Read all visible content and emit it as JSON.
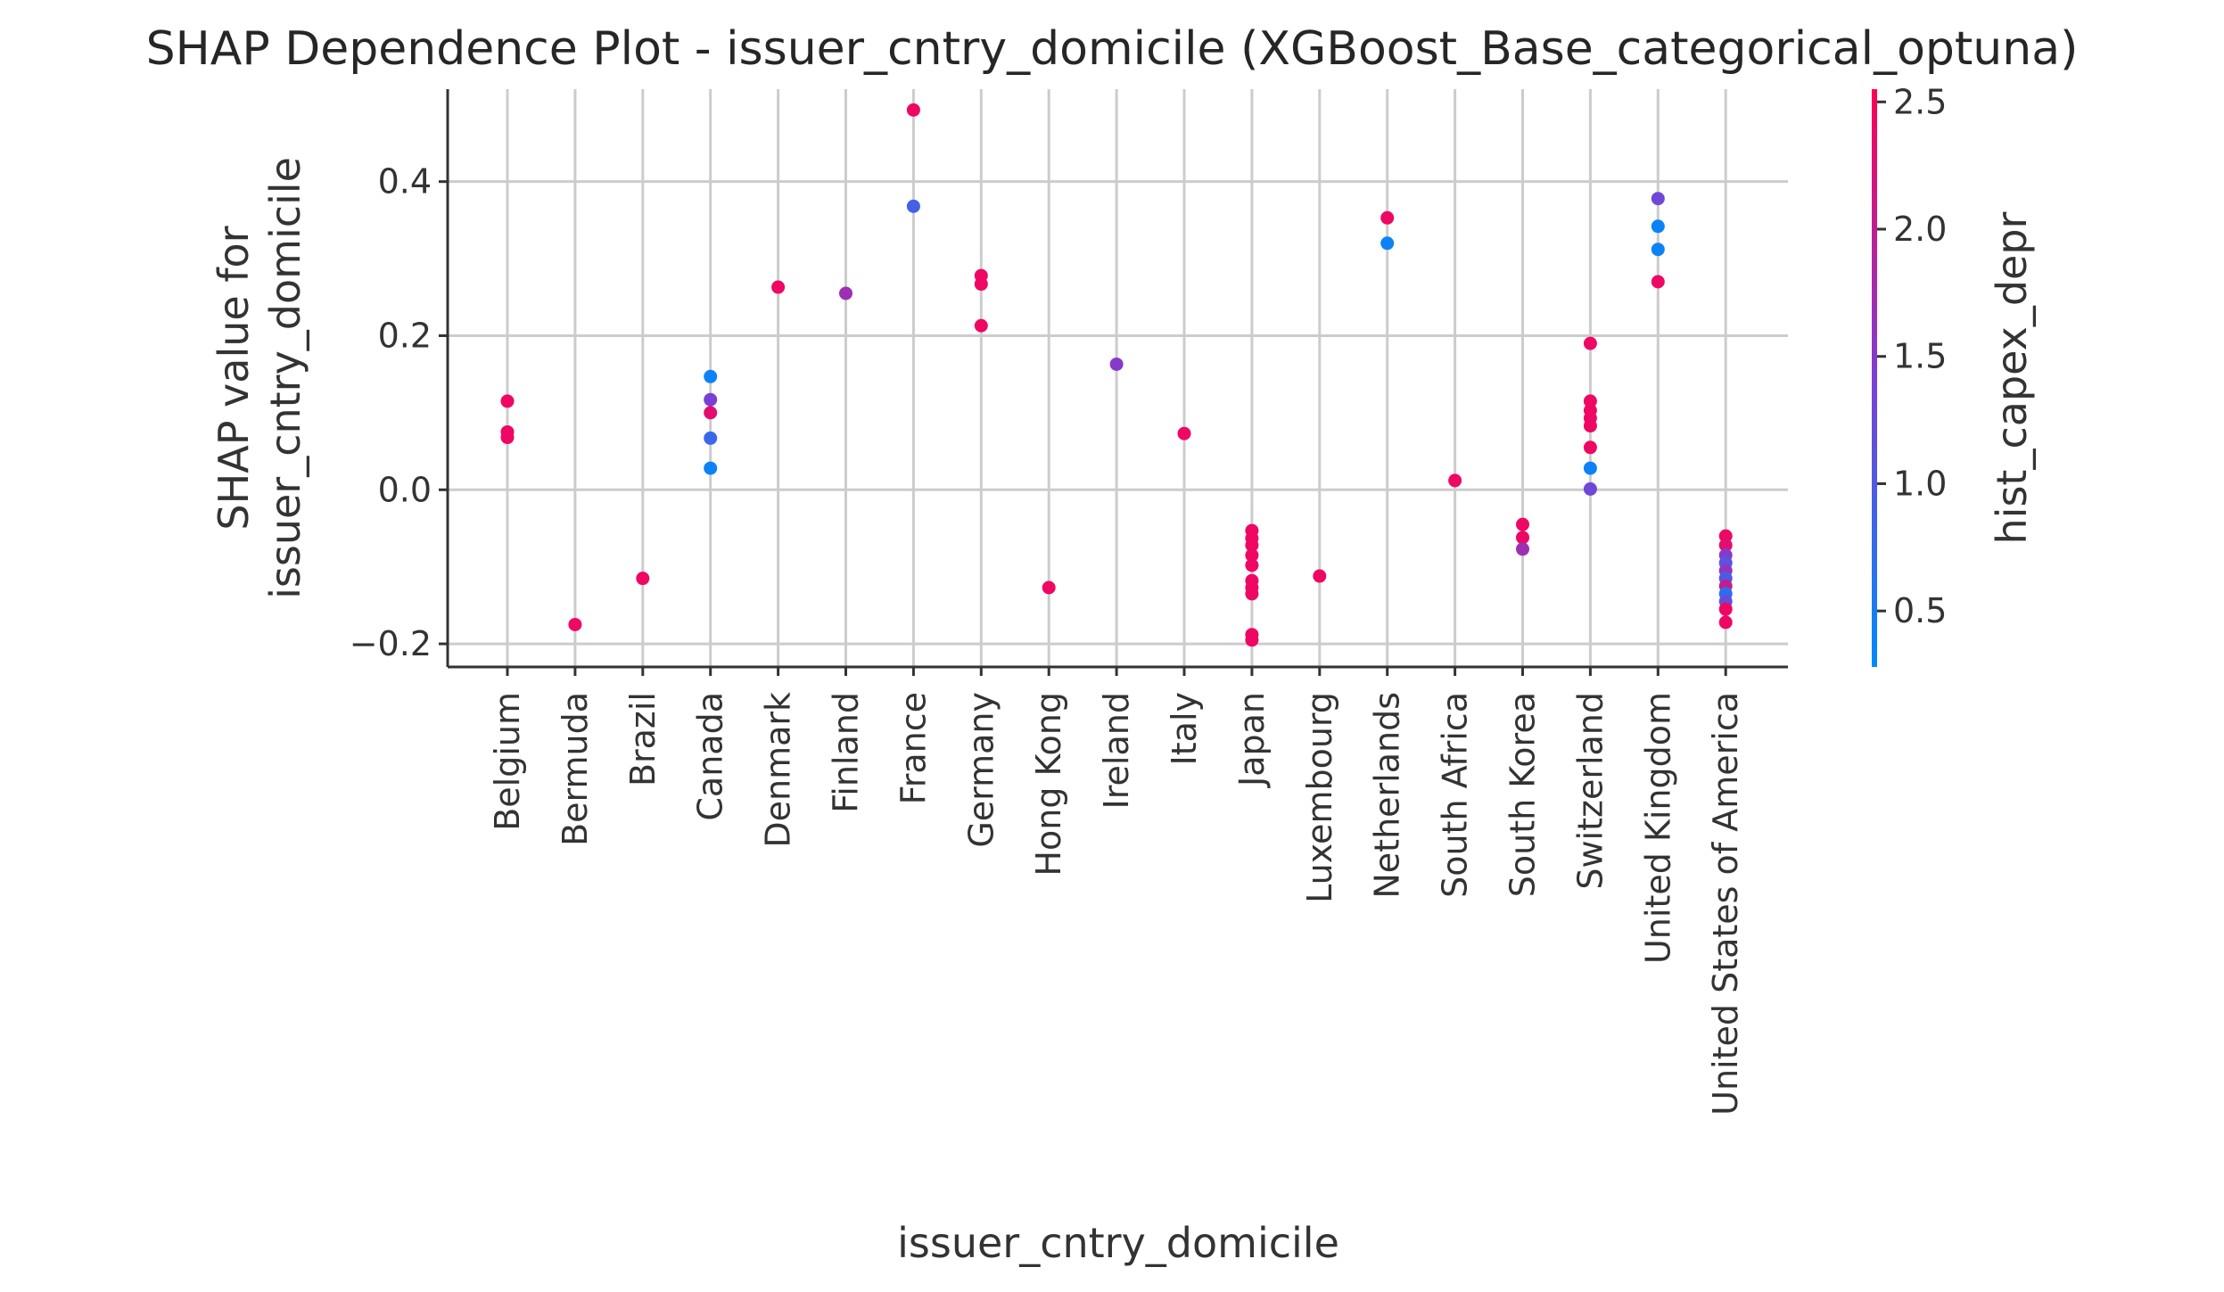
{
  "chart_data": {
    "type": "scatter",
    "title": "SHAP Dependence Plot - issuer_cntry_domicile (XGBoost_Base_categorical_optuna)",
    "xlabel": "issuer_cntry_domicile",
    "ylabel_lines": [
      "SHAP value for",
      "issuer_cntry_domicile"
    ],
    "ylim": [
      -0.23,
      0.52
    ],
    "yticks": [
      -0.2,
      0.0,
      0.2,
      0.4
    ],
    "ytick_labels": [
      "−0.2",
      "0.0",
      "0.2",
      "0.4"
    ],
    "grid": true,
    "categories": [
      "Belgium",
      "Bermuda",
      "Brazil",
      "Canada",
      "Denmark",
      "Finland",
      "France",
      "Germany",
      "Hong Kong",
      "Ireland",
      "Italy",
      "Japan",
      "Luxembourg",
      "Netherlands",
      "South Africa",
      "South Korea",
      "Switzerland",
      "United Kingdom",
      "United States of America"
    ],
    "colorbar": {
      "label": "hist_capex_depr",
      "range": [
        0.28,
        2.55
      ],
      "ticks": [
        0.5,
        1.0,
        1.5,
        2.0,
        2.5
      ],
      "tick_labels": [
        "0.5",
        "1.0",
        "1.5",
        "2.0",
        "2.5"
      ],
      "low_color": "#008afb",
      "mid_color": "#7c3fd5",
      "high_color": "#ff0052"
    },
    "points": [
      {
        "x": "Belgium",
        "y": 0.115,
        "c": 2.4
      },
      {
        "x": "Belgium",
        "y": 0.075,
        "c": 2.4
      },
      {
        "x": "Belgium",
        "y": 0.068,
        "c": 2.4
      },
      {
        "x": "Bermuda",
        "y": -0.175,
        "c": 2.4
      },
      {
        "x": "Brazil",
        "y": -0.115,
        "c": 2.4
      },
      {
        "x": "Canada",
        "y": 0.147,
        "c": 0.4
      },
      {
        "x": "Canada",
        "y": 0.117,
        "c": 1.4
      },
      {
        "x": "Canada",
        "y": 0.1,
        "c": 2.3
      },
      {
        "x": "Canada",
        "y": 0.067,
        "c": 0.8
      },
      {
        "x": "Canada",
        "y": 0.028,
        "c": 0.4
      },
      {
        "x": "Denmark",
        "y": 0.263,
        "c": 2.4
      },
      {
        "x": "Finland",
        "y": 0.255,
        "c": 1.7
      },
      {
        "x": "France",
        "y": 0.493,
        "c": 2.4
      },
      {
        "x": "France",
        "y": 0.368,
        "c": 0.9
      },
      {
        "x": "Germany",
        "y": 0.278,
        "c": 2.4
      },
      {
        "x": "Germany",
        "y": 0.267,
        "c": 2.4
      },
      {
        "x": "Germany",
        "y": 0.213,
        "c": 2.4
      },
      {
        "x": "Hong Kong",
        "y": -0.127,
        "c": 2.4
      },
      {
        "x": "Ireland",
        "y": 0.163,
        "c": 1.5
      },
      {
        "x": "Italy",
        "y": 0.073,
        "c": 2.4
      },
      {
        "x": "Japan",
        "y": -0.053,
        "c": 2.4
      },
      {
        "x": "Japan",
        "y": -0.063,
        "c": 2.4
      },
      {
        "x": "Japan",
        "y": -0.072,
        "c": 2.4
      },
      {
        "x": "Japan",
        "y": -0.085,
        "c": 2.4
      },
      {
        "x": "Japan",
        "y": -0.098,
        "c": 2.4
      },
      {
        "x": "Japan",
        "y": -0.118,
        "c": 2.4
      },
      {
        "x": "Japan",
        "y": -0.127,
        "c": 2.4
      },
      {
        "x": "Japan",
        "y": -0.135,
        "c": 2.4
      },
      {
        "x": "Japan",
        "y": -0.188,
        "c": 2.4
      },
      {
        "x": "Japan",
        "y": -0.195,
        "c": 2.4
      },
      {
        "x": "Luxembourg",
        "y": -0.112,
        "c": 2.4
      },
      {
        "x": "Netherlands",
        "y": 0.353,
        "c": 2.4
      },
      {
        "x": "Netherlands",
        "y": 0.32,
        "c": 0.4
      },
      {
        "x": "South Africa",
        "y": 0.012,
        "c": 2.4
      },
      {
        "x": "South Korea",
        "y": -0.045,
        "c": 2.4
      },
      {
        "x": "South Korea",
        "y": -0.062,
        "c": 2.4
      },
      {
        "x": "South Korea",
        "y": -0.077,
        "c": 1.7
      },
      {
        "x": "Switzerland",
        "y": 0.19,
        "c": 2.4
      },
      {
        "x": "Switzerland",
        "y": 0.115,
        "c": 2.4
      },
      {
        "x": "Switzerland",
        "y": 0.103,
        "c": 2.4
      },
      {
        "x": "Switzerland",
        "y": 0.093,
        "c": 2.4
      },
      {
        "x": "Switzerland",
        "y": 0.083,
        "c": 2.4
      },
      {
        "x": "Switzerland",
        "y": 0.055,
        "c": 2.4
      },
      {
        "x": "Switzerland",
        "y": 0.028,
        "c": 0.4
      },
      {
        "x": "Switzerland",
        "y": 0.001,
        "c": 1.3
      },
      {
        "x": "United Kingdom",
        "y": 0.378,
        "c": 1.3
      },
      {
        "x": "United Kingdom",
        "y": 0.342,
        "c": 0.4
      },
      {
        "x": "United Kingdom",
        "y": 0.312,
        "c": 0.4
      },
      {
        "x": "United Kingdom",
        "y": 0.27,
        "c": 2.4
      },
      {
        "x": "United States of America",
        "y": -0.06,
        "c": 2.4
      },
      {
        "x": "United States of America",
        "y": -0.072,
        "c": 2.3
      },
      {
        "x": "United States of America",
        "y": -0.085,
        "c": 1.5
      },
      {
        "x": "United States of America",
        "y": -0.095,
        "c": 1.1
      },
      {
        "x": "United States of America",
        "y": -0.105,
        "c": 1.6
      },
      {
        "x": "United States of America",
        "y": -0.115,
        "c": 1.0
      },
      {
        "x": "United States of America",
        "y": -0.125,
        "c": 2.0
      },
      {
        "x": "United States of America",
        "y": -0.135,
        "c": 0.7
      },
      {
        "x": "United States of America",
        "y": -0.145,
        "c": 1.2
      },
      {
        "x": "United States of America",
        "y": -0.155,
        "c": 2.4
      },
      {
        "x": "United States of America",
        "y": -0.172,
        "c": 2.4
      }
    ]
  }
}
